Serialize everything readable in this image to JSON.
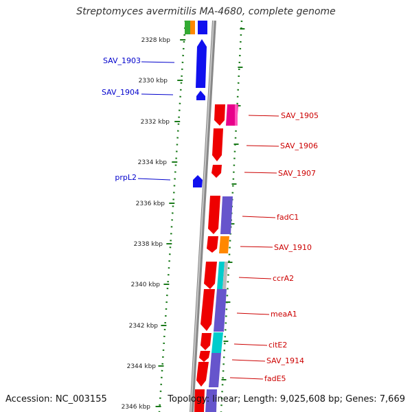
{
  "title": "Streptomyces avermitilis MA-4680, complete genome",
  "accession": "Accession: NC_003155",
  "topology": "Topology: linear; Length: 9,025,608 bp; Genes: 7,669",
  "ticks": [
    "2328 kbp",
    "2330 kbp",
    "2332 kbp",
    "2334 kbp",
    "2336 kbp",
    "2338 kbp",
    "2340 kbp",
    "2342 kbp",
    "2344 kbp",
    "2346 kbp"
  ],
  "genes_left": [
    {
      "label": "SAV_1903",
      "color": "#0000cc"
    },
    {
      "label": "SAV_1904",
      "color": "#0000cc"
    },
    {
      "label": "prpL2",
      "color": "#0000cc"
    }
  ],
  "genes_right": [
    {
      "label": "SAV_1905",
      "color": "#cc0000"
    },
    {
      "label": "SAV_1906",
      "color": "#cc0000"
    },
    {
      "label": "SAV_1907",
      "color": "#cc0000"
    },
    {
      "label": "fadC1",
      "color": "#cc0000"
    },
    {
      "label": "SAV_1910",
      "color": "#cc0000"
    },
    {
      "label": "ccrA2",
      "color": "#cc0000"
    },
    {
      "label": "meaA1",
      "color": "#cc0000"
    },
    {
      "label": "citE2",
      "color": "#cc0000"
    },
    {
      "label": "SAV_1914",
      "color": "#cc0000"
    },
    {
      "label": "fadE5",
      "color": "#cc0000"
    }
  ]
}
